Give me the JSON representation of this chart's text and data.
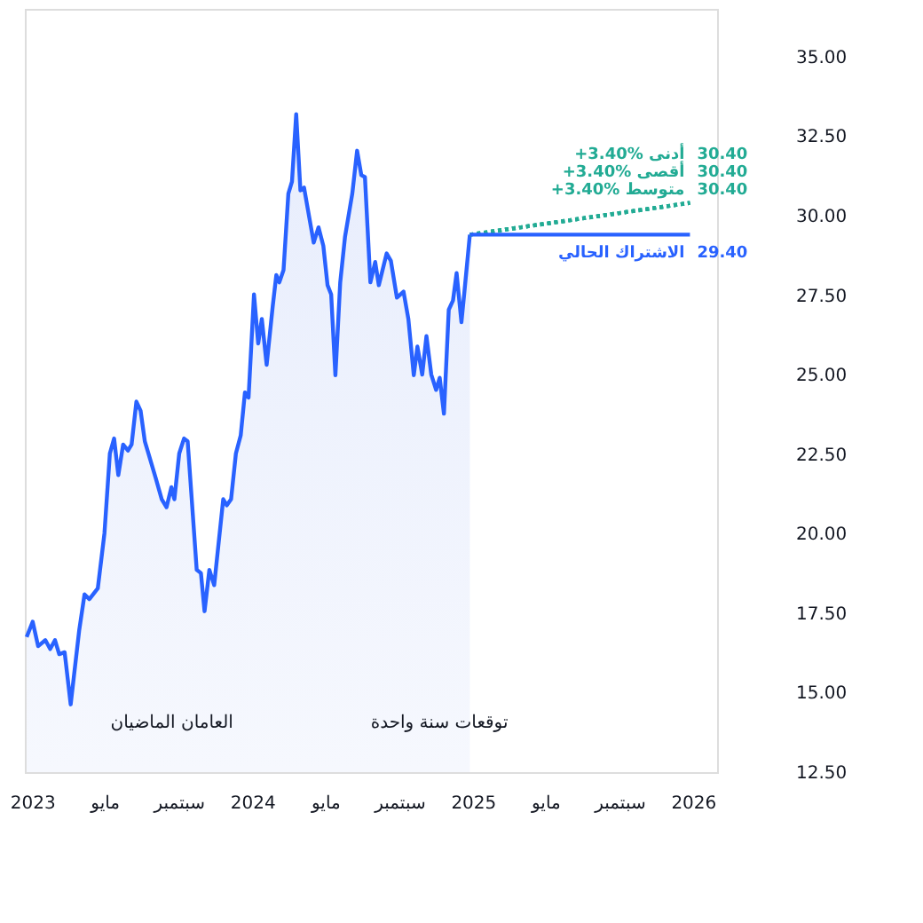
{
  "chart_data": {
    "type": "line",
    "xlim": [
      "2022-12-20",
      "2026-02-10"
    ],
    "xticks": [
      {
        "value": "2023-01-01",
        "label": "2023"
      },
      {
        "value": "2023-05-01",
        "label": "مايو"
      },
      {
        "value": "2023-09-01",
        "label": "سبتمبر"
      },
      {
        "value": "2024-01-01",
        "label": "2024"
      },
      {
        "value": "2024-05-01",
        "label": "مايو"
      },
      {
        "value": "2024-09-01",
        "label": "سبتمبر"
      },
      {
        "value": "2025-01-01",
        "label": "2025"
      },
      {
        "value": "2025-05-01",
        "label": "مايو"
      },
      {
        "value": "2025-09-01",
        "label": "سبتمبر"
      },
      {
        "value": "2026-01-01",
        "label": "2026"
      }
    ],
    "ylim": [
      12.5,
      36.5
    ],
    "yticks": [
      {
        "value": 12.5,
        "label": "12.50"
      },
      {
        "value": 15,
        "label": "15.00"
      },
      {
        "value": 17.5,
        "label": "17.50"
      },
      {
        "value": 20,
        "label": "20.00"
      },
      {
        "value": 22.5,
        "label": "22.50"
      },
      {
        "value": 25,
        "label": "25.00"
      },
      {
        "value": 27.5,
        "label": "27.50"
      },
      {
        "value": 30,
        "label": "30.00"
      },
      {
        "value": 32.5,
        "label": "32.50"
      },
      {
        "value": 35,
        "label": "35.00"
      }
    ],
    "grid": false,
    "legend": false,
    "annotations": [
      "العامان الماضيان",
      "توقعات سنة واحدة"
    ],
    "series": [
      {
        "type": "area",
        "color": "#2962ff",
        "x": [
          "2022-12-23",
          "2023-01-02",
          "2023-01-11",
          "2023-01-23",
          "2023-01-31",
          "2023-02-08",
          "2023-02-15",
          "2023-02-24",
          "2023-03-06",
          "2023-03-20",
          "2023-03-29",
          "2023-04-06",
          "2023-04-20",
          "2023-05-01",
          "2023-05-10",
          "2023-05-17",
          "2023-05-24",
          "2023-06-01",
          "2023-06-09",
          "2023-06-15",
          "2023-06-23",
          "2023-06-30",
          "2023-07-07",
          "2023-07-25",
          "2023-08-04",
          "2023-08-12",
          "2023-08-20",
          "2023-08-25",
          "2023-09-02",
          "2023-09-10",
          "2023-09-16",
          "2023-10-01",
          "2023-10-08",
          "2023-10-14",
          "2023-10-22",
          "2023-10-30",
          "2023-11-14",
          "2023-11-20",
          "2023-11-27",
          "2023-12-05",
          "2023-12-13",
          "2023-12-20",
          "2023-12-26",
          "2024-01-04",
          "2024-01-11",
          "2024-01-17",
          "2024-01-25",
          "2024-02-04",
          "2024-02-10",
          "2024-02-15",
          "2024-02-22",
          "2024-03-01",
          "2024-03-07",
          "2024-03-14",
          "2024-03-21",
          "2024-03-27",
          "2024-04-12",
          "2024-04-20",
          "2024-04-28",
          "2024-05-05",
          "2024-05-11",
          "2024-05-18",
          "2024-05-26",
          "2024-06-03",
          "2024-06-15",
          "2024-06-23",
          "2024-06-30",
          "2024-07-06",
          "2024-07-15",
          "2024-07-23",
          "2024-07-29",
          "2024-08-11",
          "2024-08-18",
          "2024-08-28",
          "2024-09-08",
          "2024-09-16",
          "2024-09-25",
          "2024-10-01",
          "2024-10-09",
          "2024-10-16",
          "2024-10-24",
          "2024-11-01",
          "2024-11-07",
          "2024-11-14",
          "2024-11-22",
          "2024-11-29",
          "2024-12-05",
          "2024-12-13",
          "2024-12-18",
          "2024-12-27"
        ],
        "values": [
          16.75,
          17.23,
          16.46,
          16.65,
          16.37,
          16.65,
          16.21,
          16.27,
          14.63,
          16.94,
          18.09,
          17.94,
          18.28,
          20.01,
          22.52,
          22.99,
          21.84,
          22.8,
          22.61,
          22.8,
          24.15,
          23.86,
          22.9,
          21.75,
          21.08,
          20.83,
          21.46,
          21.08,
          22.52,
          22.99,
          22.9,
          18.86,
          18.76,
          17.56,
          18.86,
          18.38,
          21.08,
          20.89,
          21.08,
          22.52,
          23.09,
          24.44,
          24.28,
          27.52,
          25.98,
          26.75,
          25.31,
          27.14,
          28.13,
          27.9,
          28.29,
          30.69,
          31.07,
          33.19,
          30.79,
          30.88,
          29.15,
          29.63,
          29.05,
          27.81,
          27.52,
          24.98,
          27.9,
          29.34,
          30.69,
          32.04,
          31.27,
          31.21,
          27.9,
          28.54,
          27.81,
          28.81,
          28.58,
          27.42,
          27.61,
          26.75,
          24.98,
          25.88,
          25.0,
          26.21,
          25.0,
          24.52,
          24.9,
          23.77,
          27.04,
          27.33,
          28.19,
          26.65,
          27.61,
          29.4
        ]
      },
      {
        "name": "+3.40% أدنى",
        "line_style": "dotted",
        "color": "#22ab94",
        "x": [
          "2024-12-27",
          "2025-12-27"
        ],
        "values": [
          29.4,
          30.4
        ],
        "value_labels": [
          null,
          "30.40"
        ]
      },
      {
        "name": "+3.40% أقصى",
        "line_style": "dotted",
        "color": "#22ab94",
        "x": [
          "2024-12-27",
          "2025-12-27"
        ],
        "values": [
          29.4,
          30.4
        ],
        "value_labels": [
          null,
          "30.40"
        ]
      },
      {
        "name": "+3.40% متوسط",
        "line_style": "dotted",
        "color": "#22ab94",
        "x": [
          "2024-12-27",
          "2025-12-27"
        ],
        "values": [
          29.4,
          30.4
        ],
        "value_labels": [
          null,
          "30.40"
        ]
      },
      {
        "name": "الاشتراك الحالي",
        "line_style": "solid",
        "color": "#2962ff",
        "x": [
          "2024-12-27",
          "2025-12-27"
        ],
        "values": [
          29.4,
          29.4
        ],
        "value_labels": [
          null,
          "29.40"
        ]
      }
    ]
  }
}
